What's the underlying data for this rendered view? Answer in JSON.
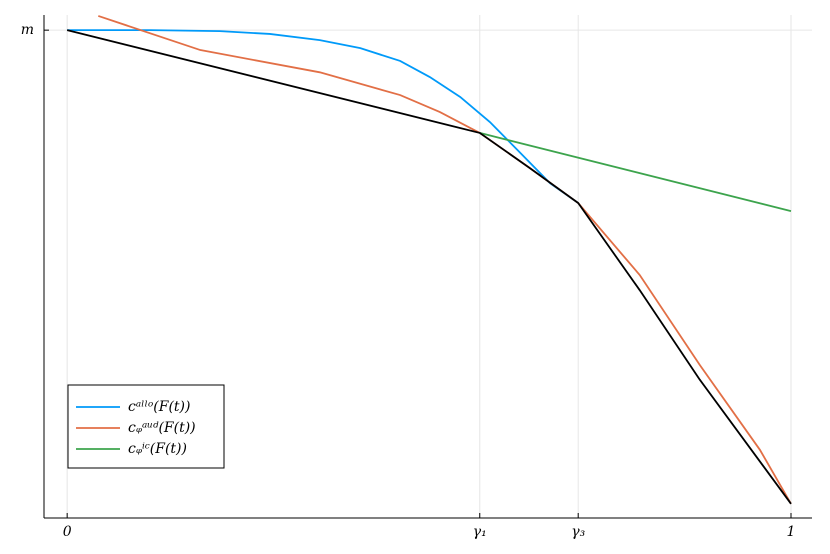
{
  "chart_data": {
    "type": "line",
    "xlim": [
      -0.032,
      1.029
    ],
    "ylim": [
      -0.03,
      1.032
    ],
    "xticks": [
      0,
      {
        "value": 0.57,
        "label": "γ₁"
      },
      {
        "value": 0.706,
        "label": "γ₃"
      },
      1
    ],
    "yticks": [
      {
        "value": 1,
        "label": "m"
      }
    ],
    "grid": true,
    "legend": "bottom left",
    "series": [
      {
        "name": "cᵃˡˡᵒ(F(t))",
        "color": "#009af9",
        "x": [
          0,
          0.115,
          0.211,
          0.28,
          0.349,
          0.405,
          0.46,
          0.501,
          0.543,
          0.584,
          0.626,
          0.667,
          0.706
        ],
        "values": [
          1.0,
          1.0,
          0.998,
          0.992,
          0.979,
          0.962,
          0.935,
          0.901,
          0.859,
          0.806,
          0.741,
          0.677,
          0.635
        ]
      },
      {
        "name": "cᵩᵃᵘᵈ(F(t))",
        "color": "#e26f46",
        "x": [
          0.043,
          0.184,
          0.349,
          0.46,
          0.515,
          0.57,
          0.639,
          0.706,
          0.791,
          0.874,
          0.957,
          1
        ],
        "values": [
          1.03,
          0.958,
          0.911,
          0.863,
          0.827,
          0.783,
          0.709,
          0.635,
          0.483,
          0.293,
          0.114,
          0
        ]
      },
      {
        "name": "cᵩⁱᶜ(F(t))",
        "color": "#3da44d",
        "x": [
          0.57,
          1
        ],
        "values": [
          0.783,
          0.618
        ]
      },
      {
        "color": "#000000",
        "x": [
          0,
          0.57,
          0.639,
          0.706,
          0.791,
          0.874,
          1
        ],
        "values": [
          1,
          0.783,
          0.709,
          0.635,
          0.451,
          0.262,
          0
        ]
      }
    ]
  }
}
